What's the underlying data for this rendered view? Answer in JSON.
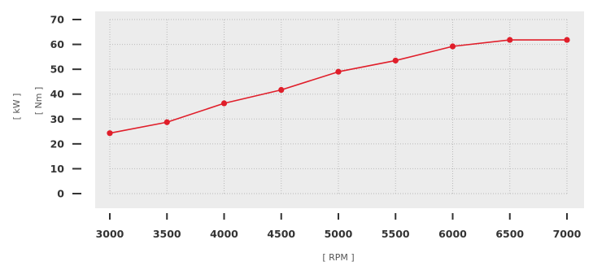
{
  "chart_data": {
    "type": "line",
    "xlabel": "[ RPM ]",
    "ylabels": [
      "[ kW ]",
      "[ Nm ]"
    ],
    "x": [
      3000,
      3500,
      4000,
      4500,
      5000,
      5500,
      6000,
      6500,
      7000
    ],
    "xticks": [
      3000,
      3500,
      4000,
      4500,
      5000,
      5500,
      6000,
      6500,
      7000
    ],
    "yticks": [
      0,
      10,
      20,
      30,
      40,
      50,
      60,
      70
    ],
    "xlim": [
      3000,
      7000
    ],
    "ylim": [
      0,
      70
    ],
    "grid": true,
    "series": [
      {
        "values": [
          24.3,
          28.7,
          36.3,
          41.7,
          49.0,
          53.5,
          59.2,
          61.8,
          61.8
        ],
        "color": "#e01e2a"
      }
    ]
  },
  "colors": {
    "plot_background": "#ececec",
    "grid": "#b9b9b9",
    "axis_text": "#333333",
    "series": "#e01e2a"
  }
}
